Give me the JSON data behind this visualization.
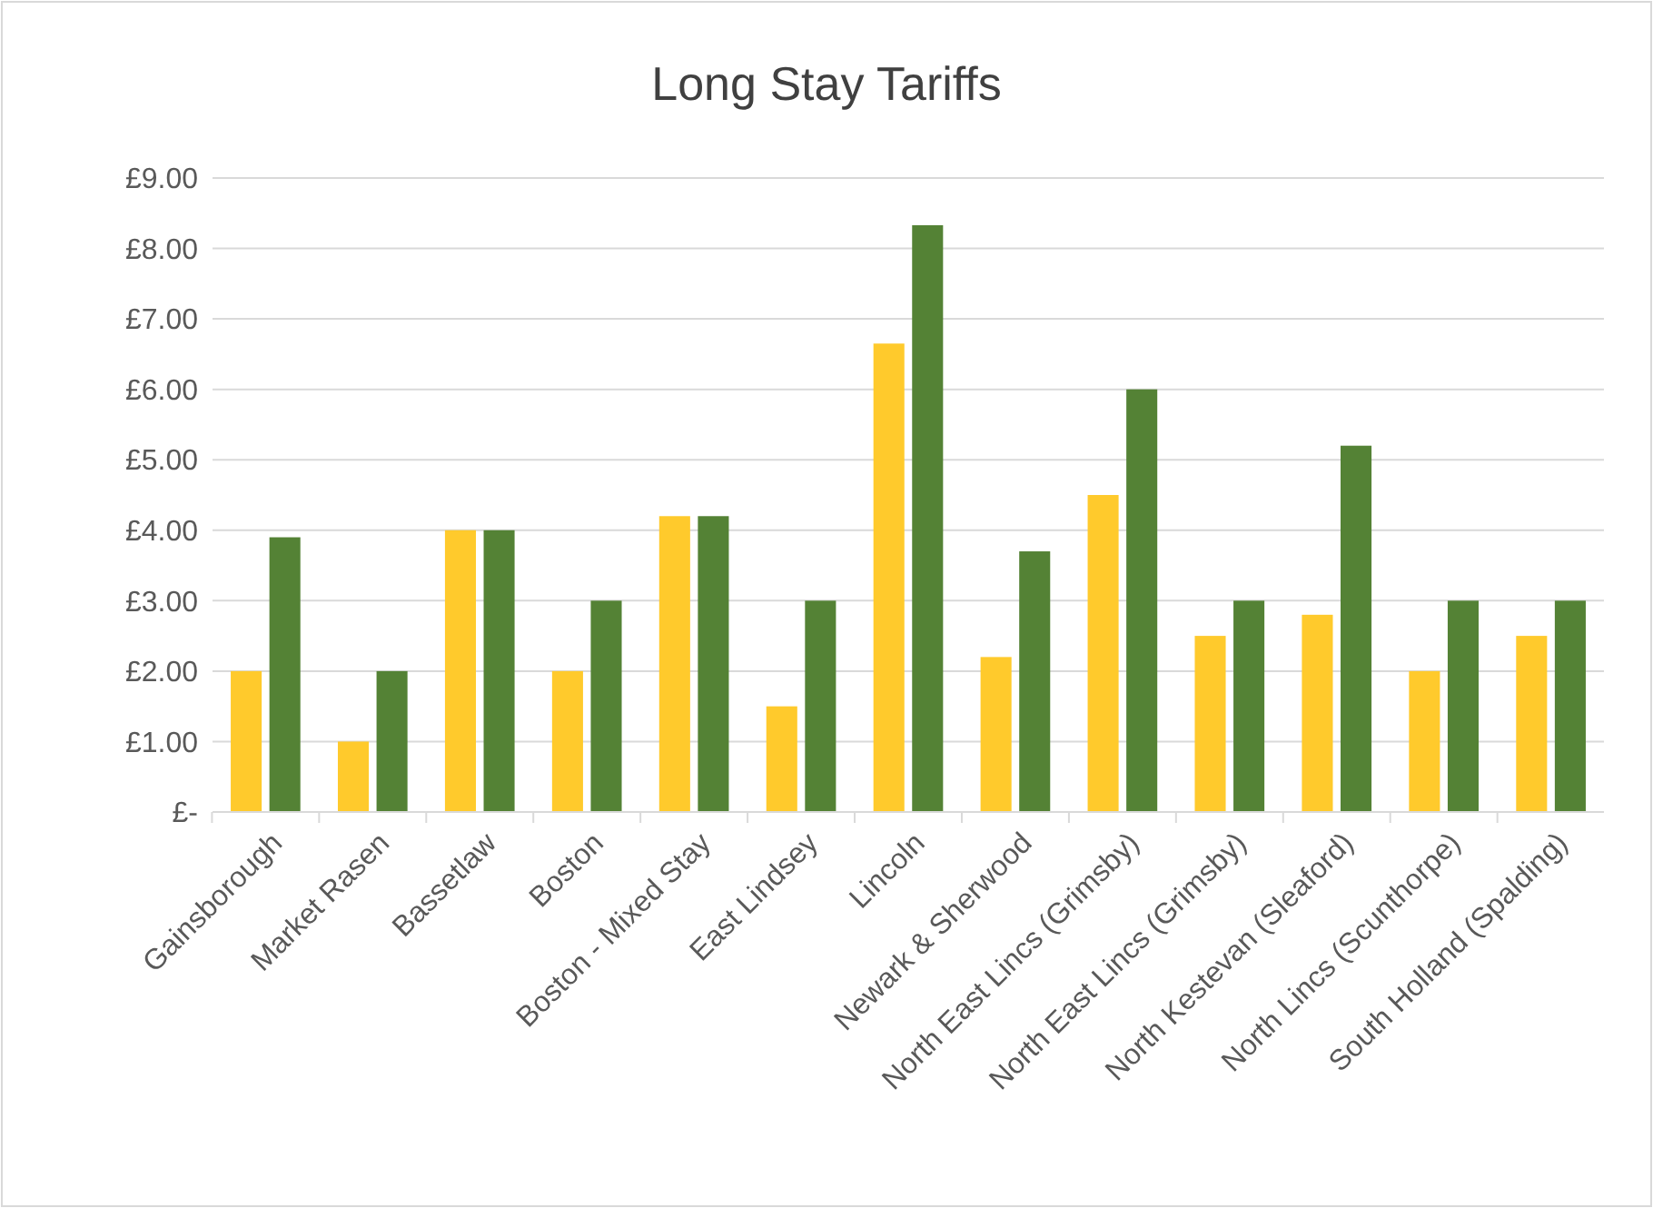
{
  "chart_data": {
    "type": "bar",
    "title": "Long Stay Tariffs",
    "categories": [
      "Gainsborough",
      "Market Rasen",
      "Bassetlaw",
      "Boston",
      "Boston - Mixed Stay",
      "East Lindsey",
      "Lincoln",
      "Newark & Sherwood",
      "North East Lincs (Grimsby)",
      "North East Lincs (Grimsby)",
      "North Kestevan (Sleaford)",
      "North Lincs (Scunthorpe)",
      "South Holland (Spalding)"
    ],
    "series": [
      {
        "color": "#ffca2c",
        "values": [
          2,
          1,
          4,
          2,
          4.2,
          1.5,
          6.65,
          2.2,
          4.5,
          2.5,
          2.8,
          2,
          2.5
        ]
      },
      {
        "color": "#548235",
        "values": [
          3.9,
          2,
          4,
          3,
          4.2,
          3,
          8.33,
          3.7,
          6,
          3,
          5.2,
          3,
          3
        ]
      }
    ],
    "ylim": [
      0,
      9
    ],
    "yticks": [
      {
        "value": 0,
        "label": "£-"
      },
      {
        "value": 1,
        "label": "£1.00"
      },
      {
        "value": 2,
        "label": "£2.00"
      },
      {
        "value": 3,
        "label": "£3.00"
      },
      {
        "value": 4,
        "label": "£4.00"
      },
      {
        "value": 5,
        "label": "£5.00"
      },
      {
        "value": 6,
        "label": "£6.00"
      },
      {
        "value": 7,
        "label": "£7.00"
      },
      {
        "value": 8,
        "label": "£8.00"
      },
      {
        "value": 9,
        "label": "£9.00"
      }
    ],
    "grid": "y"
  }
}
